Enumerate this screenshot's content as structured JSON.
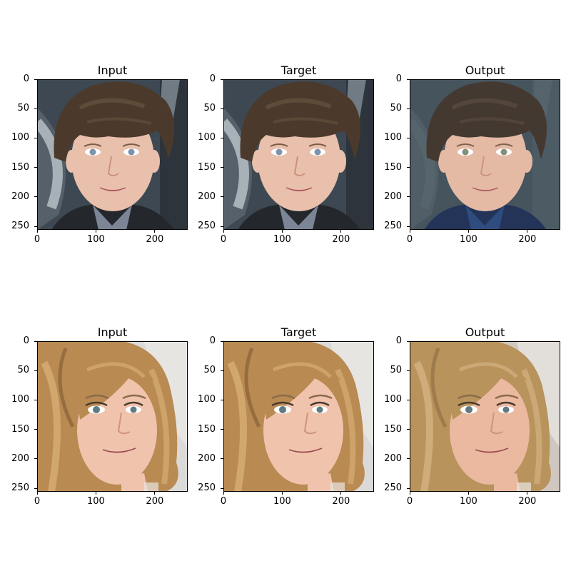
{
  "figure": {
    "rows": [
      {
        "subject": "boy",
        "panels": [
          {
            "title": "Input",
            "variant": "input"
          },
          {
            "title": "Target",
            "variant": "target"
          },
          {
            "title": "Output",
            "variant": "output"
          }
        ]
      },
      {
        "subject": "woman",
        "panels": [
          {
            "title": "Input",
            "variant": "input"
          },
          {
            "title": "Target",
            "variant": "target"
          },
          {
            "title": "Output",
            "variant": "output"
          }
        ]
      }
    ],
    "axes": {
      "ticks_y": [
        "0",
        "50",
        "100",
        "150",
        "200",
        "250"
      ],
      "ticks_x": [
        "0",
        "100",
        "200"
      ],
      "ylim": [
        0,
        256
      ],
      "xlim": [
        0,
        256
      ]
    }
  }
}
